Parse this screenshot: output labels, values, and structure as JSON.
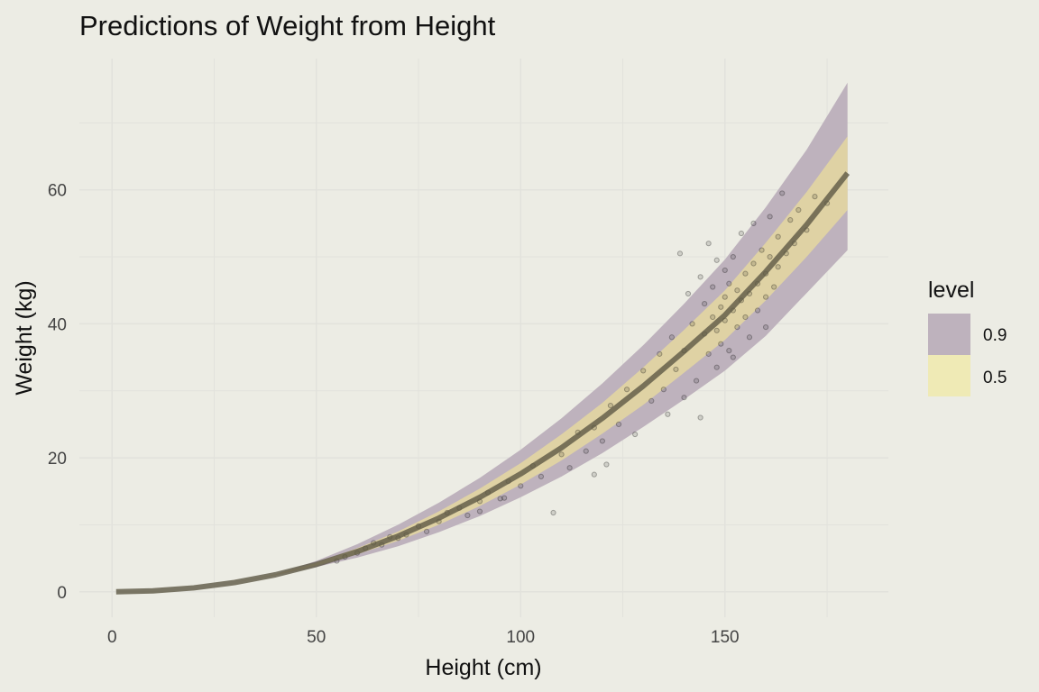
{
  "chart_data": {
    "type": "line",
    "title": "Predictions of Weight from Height",
    "xlabel": "Height (cm)",
    "ylabel": "Weight (kg)",
    "xlim": [
      -8,
      190
    ],
    "ylim": [
      -3.8,
      79.6
    ],
    "x_ticks": [
      0,
      50,
      100,
      150
    ],
    "y_ticks": [
      0,
      20,
      40,
      60
    ],
    "x_minor": [
      25,
      75,
      125,
      175
    ],
    "y_minor": [
      10,
      30,
      50,
      70
    ],
    "grid": true,
    "legend": {
      "title": "level",
      "placement": "right",
      "entries": [
        {
          "label": "0.9",
          "color": "#BEB2BD"
        },
        {
          "label": "0.5",
          "color": "#EFEAB5"
        }
      ]
    },
    "colors": {
      "band90": "#BEB2BD",
      "band50": "#E9DC9C",
      "line": "#5E5945",
      "points": "#000000",
      "grid": "#E2E2DC"
    },
    "prediction": {
      "height": [
        1,
        10,
        20,
        30,
        40,
        50,
        60,
        70,
        80,
        90,
        100,
        110,
        120,
        130,
        140,
        150,
        160,
        170,
        180
      ],
      "mean": [
        0.0,
        0.13,
        0.58,
        1.38,
        2.54,
        4.08,
        6.0,
        8.3,
        11.0,
        14.1,
        17.6,
        21.5,
        25.9,
        30.7,
        35.9,
        41.3,
        47.8,
        54.8,
        62.5
      ],
      "lower90": [
        0.0,
        0.13,
        0.58,
        1.38,
        2.5,
        3.7,
        5.1,
        6.8,
        8.9,
        11.3,
        14.1,
        17.2,
        20.7,
        24.6,
        28.7,
        33.0,
        38.2,
        44.6,
        51.0
      ],
      "upper90": [
        0.0,
        0.13,
        0.58,
        1.38,
        2.6,
        4.6,
        7.1,
        10.0,
        13.3,
        17.0,
        21.2,
        25.9,
        31.1,
        36.8,
        43.0,
        49.6,
        57.4,
        66.0,
        76.0
      ],
      "lower50": [
        0.0,
        0.13,
        0.58,
        1.38,
        2.5,
        3.9,
        5.6,
        7.6,
        10.0,
        12.8,
        16.0,
        19.6,
        23.6,
        27.9,
        32.7,
        37.6,
        43.5,
        50.0,
        57.0
      ],
      "upper50": [
        0.0,
        0.13,
        0.58,
        1.38,
        2.6,
        4.3,
        6.5,
        9.0,
        12.0,
        15.4,
        19.2,
        23.5,
        28.2,
        33.5,
        39.1,
        45.0,
        52.1,
        59.7,
        68.0
      ]
    },
    "points": [
      [
        55,
        4.6
      ],
      [
        57,
        5.2
      ],
      [
        60,
        5.8
      ],
      [
        62,
        6.5
      ],
      [
        64,
        7.3
      ],
      [
        66,
        7.0
      ],
      [
        68,
        8.2
      ],
      [
        70,
        8.0
      ],
      [
        72,
        8.5
      ],
      [
        75,
        9.8
      ],
      [
        77,
        9.0
      ],
      [
        80,
        10.5
      ],
      [
        82,
        11.8
      ],
      [
        85,
        12.5
      ],
      [
        87,
        11.4
      ],
      [
        90,
        13.5
      ],
      [
        92,
        14.8
      ],
      [
        95,
        13.9
      ],
      [
        97,
        16.5
      ],
      [
        100,
        15.8
      ],
      [
        103,
        18.8
      ],
      [
        105,
        17.2
      ],
      [
        108,
        11.8
      ],
      [
        110,
        20.5
      ],
      [
        112,
        18.5
      ],
      [
        114,
        23.8
      ],
      [
        116,
        21.0
      ],
      [
        118,
        24.5
      ],
      [
        120,
        22.5
      ],
      [
        122,
        27.8
      ],
      [
        124,
        25.0
      ],
      [
        126,
        30.2
      ],
      [
        128,
        23.5
      ],
      [
        130,
        33.0
      ],
      [
        132,
        28.5
      ],
      [
        134,
        35.5
      ],
      [
        135,
        30.2
      ],
      [
        137,
        38.0
      ],
      [
        138,
        33.2
      ],
      [
        139,
        50.5
      ],
      [
        140,
        36.0
      ],
      [
        141,
        44.5
      ],
      [
        142,
        40.0
      ],
      [
        143,
        31.5
      ],
      [
        144,
        47.0
      ],
      [
        145,
        38.5
      ],
      [
        145,
        43.0
      ],
      [
        146,
        52.0
      ],
      [
        146,
        35.5
      ],
      [
        147,
        41.0
      ],
      [
        147,
        45.5
      ],
      [
        148,
        39.0
      ],
      [
        148,
        49.5
      ],
      [
        149,
        37.0
      ],
      [
        149,
        42.5
      ],
      [
        150,
        44.0
      ],
      [
        150,
        40.5
      ],
      [
        150,
        48.0
      ],
      [
        151,
        36.0
      ],
      [
        151,
        46.0
      ],
      [
        152,
        42.0
      ],
      [
        152,
        50.0
      ],
      [
        153,
        39.5
      ],
      [
        153,
        45.0
      ],
      [
        154,
        43.5
      ],
      [
        154,
        53.5
      ],
      [
        155,
        41.0
      ],
      [
        155,
        47.5
      ],
      [
        156,
        44.5
      ],
      [
        156,
        38.0
      ],
      [
        157,
        49.0
      ],
      [
        157,
        55.0
      ],
      [
        158,
        46.0
      ],
      [
        158,
        42.0
      ],
      [
        159,
        51.0
      ],
      [
        160,
        47.5
      ],
      [
        160,
        44.0
      ],
      [
        161,
        56.0
      ],
      [
        161,
        50.0
      ],
      [
        162,
        45.5
      ],
      [
        163,
        53.0
      ],
      [
        163,
        48.5
      ],
      [
        164,
        59.5
      ],
      [
        165,
        50.5
      ],
      [
        166,
        55.5
      ],
      [
        167,
        52.0
      ],
      [
        168,
        57.0
      ],
      [
        170,
        54.0
      ],
      [
        172,
        59.0
      ],
      [
        175,
        58.0
      ],
      [
        144,
        26.0
      ],
      [
        140,
        29.0
      ],
      [
        136,
        26.5
      ],
      [
        148,
        33.5
      ],
      [
        152,
        35.0
      ],
      [
        90,
        12.0
      ],
      [
        96,
        14.0
      ],
      [
        118,
        17.5
      ],
      [
        121,
        19.0
      ],
      [
        160,
        39.5
      ]
    ]
  }
}
